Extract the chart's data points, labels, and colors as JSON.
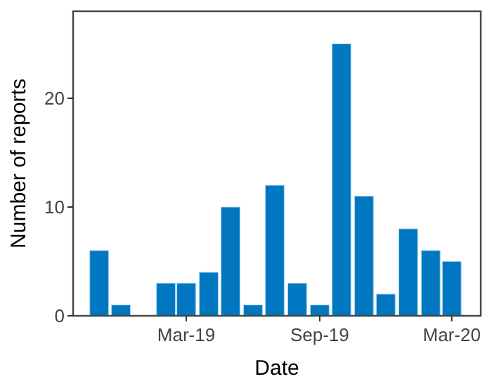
{
  "chart_data": {
    "type": "bar",
    "xlabel": "Date",
    "ylabel": "Number of reports",
    "x": [
      "2018-11-01",
      "2018-12-01",
      "2019-02-01",
      "2019-03-01",
      "2019-04-01",
      "2019-05-01",
      "2019-06-01",
      "2019-07-01",
      "2019-08-01",
      "2019-09-01",
      "2019-10-01",
      "2019-11-01",
      "2019-12-01",
      "2020-01-01",
      "2020-02-01",
      "2020-03-01"
    ],
    "values": [
      6,
      1,
      3,
      3,
      4,
      10,
      1,
      12,
      3,
      1,
      25,
      11,
      2,
      8,
      6,
      5
    ],
    "color": "#0077c0",
    "xlim": [
      "2018-09-26",
      "2020-04-10"
    ],
    "xticks": [
      {
        "value": "2019-03-01",
        "label": "Mar-19"
      },
      {
        "value": "2019-09-01",
        "label": "Sep-19"
      },
      {
        "value": "2020-03-01",
        "label": "Mar-20"
      }
    ],
    "ylim": [
      0,
      28
    ],
    "yticks": [
      0,
      10,
      20
    ],
    "grid": false
  }
}
